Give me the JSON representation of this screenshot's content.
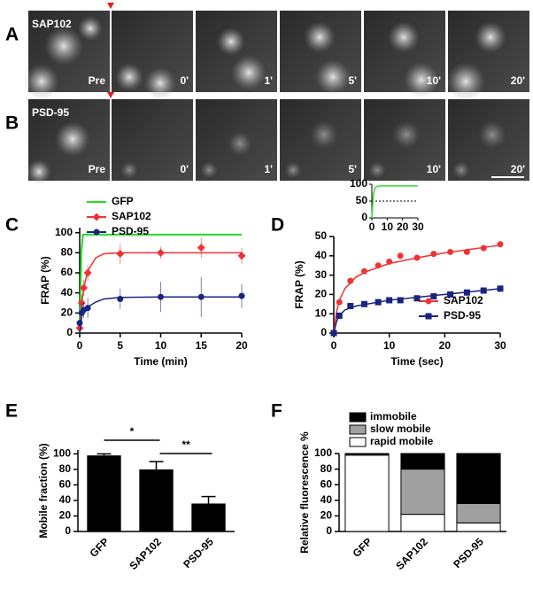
{
  "panels": [
    {
      "letter": "A",
      "name": "SAP102",
      "frames": [
        "Pre",
        "0'",
        "1'",
        "5'",
        "10'",
        "20'"
      ]
    },
    {
      "letter": "B",
      "name": "PSD-95",
      "frames": [
        "Pre",
        "0'",
        "1'",
        "5'",
        "10'",
        "20'"
      ]
    }
  ],
  "chart_data": [
    {
      "type": "line",
      "letter": "C",
      "xlabel": "Time (min)",
      "ylabel": "FRAP (%)",
      "xlim": [
        0,
        20
      ],
      "xticks": [
        0,
        5,
        10,
        15,
        20
      ],
      "ylim": [
        0,
        105
      ],
      "yticks": [
        0,
        20,
        40,
        60,
        80,
        100
      ],
      "legend": "upper left",
      "series": [
        {
          "name": "GFP",
          "color": "#22dd22",
          "x": [
            0,
            0.2,
            0.4,
            20
          ],
          "values": [
            0,
            80,
            98,
            98
          ]
        },
        {
          "name": "SAP102",
          "color": "#ee3333",
          "marker": "diamond",
          "x": [
            0,
            0.25,
            0.5,
            1,
            5,
            10,
            15,
            20
          ],
          "values": [
            5,
            30,
            45,
            60,
            79,
            80,
            85,
            77
          ],
          "errors": [
            3,
            8,
            8,
            8,
            10,
            6,
            10,
            8
          ],
          "fit": {
            "x": [
              0,
              0.25,
              0.5,
              1,
              2,
              3,
              5,
              10,
              20
            ],
            "values": [
              0,
              30,
              45,
              62,
              75,
              79,
              80,
              80,
              80
            ]
          }
        },
        {
          "name": "PSD-95",
          "color": "#1a237e",
          "marker": "circle",
          "x": [
            0,
            0.25,
            0.5,
            1,
            5,
            10,
            15,
            20
          ],
          "values": [
            10,
            20,
            23,
            25,
            34,
            36,
            36,
            37
          ],
          "errors": [
            3,
            10,
            8,
            10,
            10,
            15,
            20,
            12
          ],
          "fit": {
            "x": [
              0,
              0.25,
              0.5,
              1,
              2,
              3,
              5,
              10,
              20
            ],
            "values": [
              0,
              18,
              22,
              26,
              31,
              34,
              35.5,
              36,
              36
            ]
          }
        }
      ]
    },
    {
      "type": "line",
      "letter": "D",
      "xlabel": "Time (sec)",
      "ylabel": "FRAP (%)",
      "xlim": [
        0,
        30
      ],
      "xticks": [
        0,
        10,
        20,
        30
      ],
      "ylim": [
        0,
        50
      ],
      "yticks": [
        0,
        10,
        20,
        30,
        40,
        50
      ],
      "legend": "lower right",
      "series": [
        {
          "name": "SAP102",
          "color": "#ee3333",
          "marker": "circle",
          "x": [
            0,
            1,
            3,
            5.5,
            8,
            10,
            12,
            15,
            18,
            21,
            24,
            27,
            30
          ],
          "values": [
            0,
            16,
            27,
            32,
            35,
            37,
            40,
            39,
            41,
            42,
            42,
            44,
            46
          ],
          "fit": {
            "x": [
              0,
              0.5,
              1,
              2,
              4,
              6,
              10,
              15,
              20,
              25,
              30
            ],
            "values": [
              0,
              11,
              17,
              23,
              29,
              32,
              36,
              39,
              41.5,
              43.5,
              45.5
            ]
          }
        },
        {
          "name": "PSD-95",
          "color": "#1a237e",
          "marker": "square",
          "x": [
            0,
            1,
            3,
            5.5,
            8,
            10,
            12,
            15,
            18,
            21,
            24,
            27,
            30
          ],
          "values": [
            0,
            9,
            14,
            15,
            16,
            17,
            17,
            18,
            19,
            20,
            21,
            22,
            23
          ],
          "fit": {
            "x": [
              0,
              0.5,
              1,
              2,
              4,
              6,
              10,
              15,
              20,
              25,
              30
            ],
            "values": [
              0,
              6,
              9,
              12,
              14,
              15,
              17,
              18.5,
              20,
              21.5,
              23
            ]
          }
        }
      ],
      "inset": {
        "color": "#33dd33",
        "x": [
          0,
          1,
          2,
          3,
          5,
          10,
          30
        ],
        "values": [
          0,
          70,
          88,
          93,
          95,
          95,
          95
        ],
        "xlim": [
          0,
          30
        ],
        "xticks": [
          0,
          10,
          20,
          30
        ],
        "ylim": [
          0,
          100
        ],
        "yticks": [
          0,
          50,
          100
        ],
        "reference": 50
      }
    },
    {
      "type": "bar",
      "letter": "E",
      "ylabel": "Mobile fraction (%)",
      "categories": [
        "GFP",
        "SAP102",
        "PSD-95"
      ],
      "values": [
        98,
        80,
        36
      ],
      "errors": [
        2,
        10,
        9
      ],
      "color": "#000000",
      "ylim": [
        0,
        105
      ],
      "yticks": [
        0,
        20,
        40,
        60,
        80,
        100
      ],
      "annotations": [
        "*",
        "**"
      ]
    },
    {
      "type": "bar",
      "stacked": true,
      "letter": "F",
      "ylabel": "Relative fluorescence %",
      "categories": [
        "GFP",
        "SAP102",
        "PSD-95"
      ],
      "legend": "upper left",
      "ylim": [
        0,
        100
      ],
      "yticks": [
        0,
        20,
        40,
        60,
        80,
        100
      ],
      "series": [
        {
          "name": "rapid mobile",
          "color": "#ffffff",
          "values": [
            98,
            22,
            11
          ]
        },
        {
          "name": "slow mobile",
          "color": "#a0a0a0",
          "values": [
            0,
            58,
            25
          ]
        },
        {
          "name": "immobile",
          "color": "#000000",
          "values": [
            2,
            20,
            64
          ]
        }
      ]
    }
  ]
}
